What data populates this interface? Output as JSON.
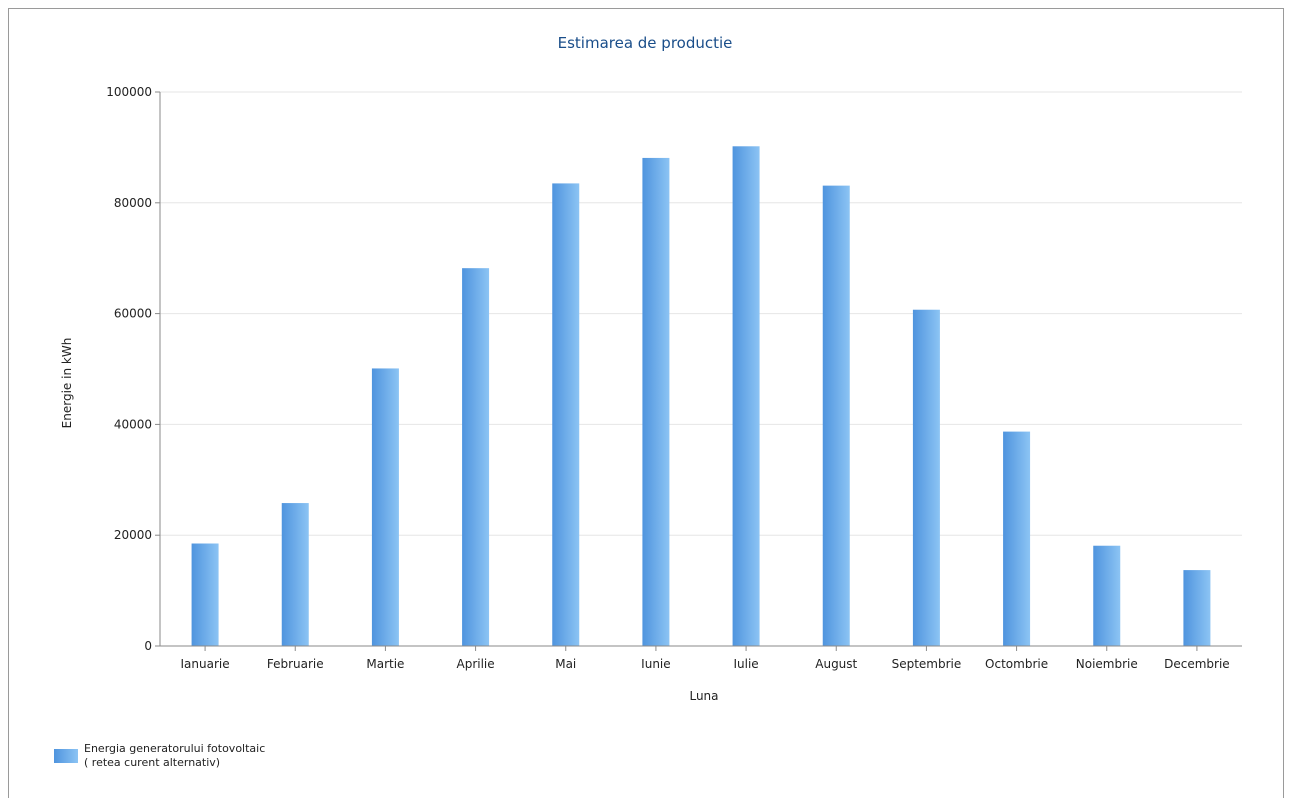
{
  "chart_data": {
    "type": "bar",
    "title": "Estimarea de productie",
    "xlabel": "Luna",
    "ylabel": "Energie in kWh",
    "ylim": [
      0,
      100000
    ],
    "yticks": [
      "0",
      "20000",
      "40000",
      "60000",
      "80000",
      "100000"
    ],
    "categories": [
      "Ianuarie",
      "Februarie",
      "Martie",
      "Aprilie",
      "Mai",
      "Iunie",
      "Iulie",
      "August",
      "Septembrie",
      "Octombrie",
      "Noiembrie",
      "Decembrie"
    ],
    "series": [
      {
        "name": "Energia generatorului fotovoltaic ( retea curent alternativ)",
        "values": [
          18500,
          25800,
          50100,
          68200,
          83500,
          88100,
          90200,
          83100,
          60700,
          38700,
          18100,
          13700
        ]
      }
    ],
    "grid": true,
    "legend_position": "bottom-left"
  },
  "legend": {
    "line1": "Energia generatorului fotovoltaic",
    "line2": "( retea curent alternativ)"
  },
  "colors": {
    "bar_start": "#4f94de",
    "bar_end": "#8cc4f4",
    "title": "#1a4e8a"
  }
}
